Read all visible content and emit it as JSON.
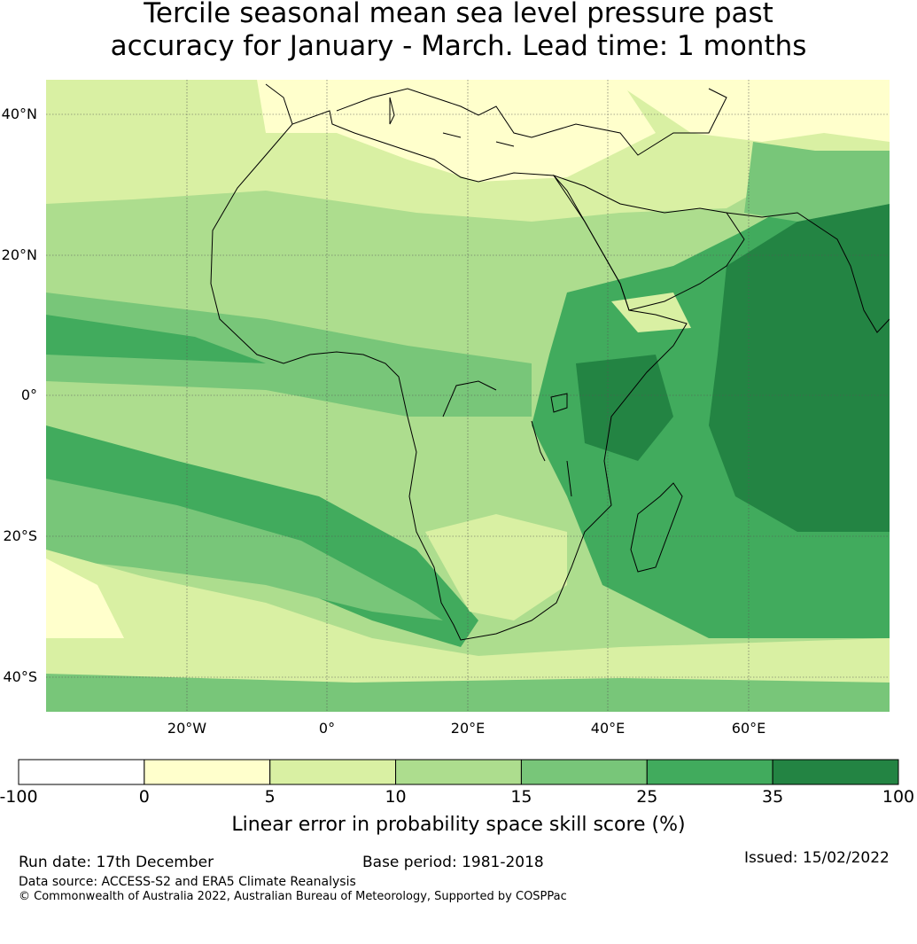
{
  "title_line1": "Tercile seasonal mean sea level pressure past",
  "title_line2": "accuracy for January - March. Lead time: 1 months",
  "map": {
    "lat_labels": [
      "40°N",
      "20°N",
      "0°",
      "20°S",
      "40°S"
    ],
    "lon_labels": [
      "20°W",
      "0°",
      "20°E",
      "40°E",
      "60°E"
    ],
    "lat_values": [
      40,
      20,
      0,
      -20,
      -40
    ],
    "lon_values": [
      -20,
      0,
      20,
      40,
      60
    ],
    "extent": {
      "lon_min": -40,
      "lon_max": 80,
      "lat_min": -45,
      "lat_max": 45
    },
    "region": "Africa, Middle East and western Indian Ocean"
  },
  "colorbar": {
    "ticks": [
      "-100",
      "0",
      "5",
      "10",
      "15",
      "25",
      "35",
      "100"
    ],
    "colors": [
      "#ffffff",
      "#ffffcc",
      "#d9f0a3",
      "#addd8e",
      "#78c679",
      "#41ab5d",
      "#238443"
    ],
    "label": "Linear error in probability space skill score (%)"
  },
  "footer": {
    "run_date": "Run date: 17th December",
    "base_period": "Base period: 1981-2018",
    "issued": "Issued: 15/02/2022",
    "data_source": "Data source: ACCESS-S2 and ERA5 Climate Reanalysis",
    "copyright": "© Commonwealth of Australia 2022, Australian Bureau of Meteorology, Supported by COSPPac"
  }
}
